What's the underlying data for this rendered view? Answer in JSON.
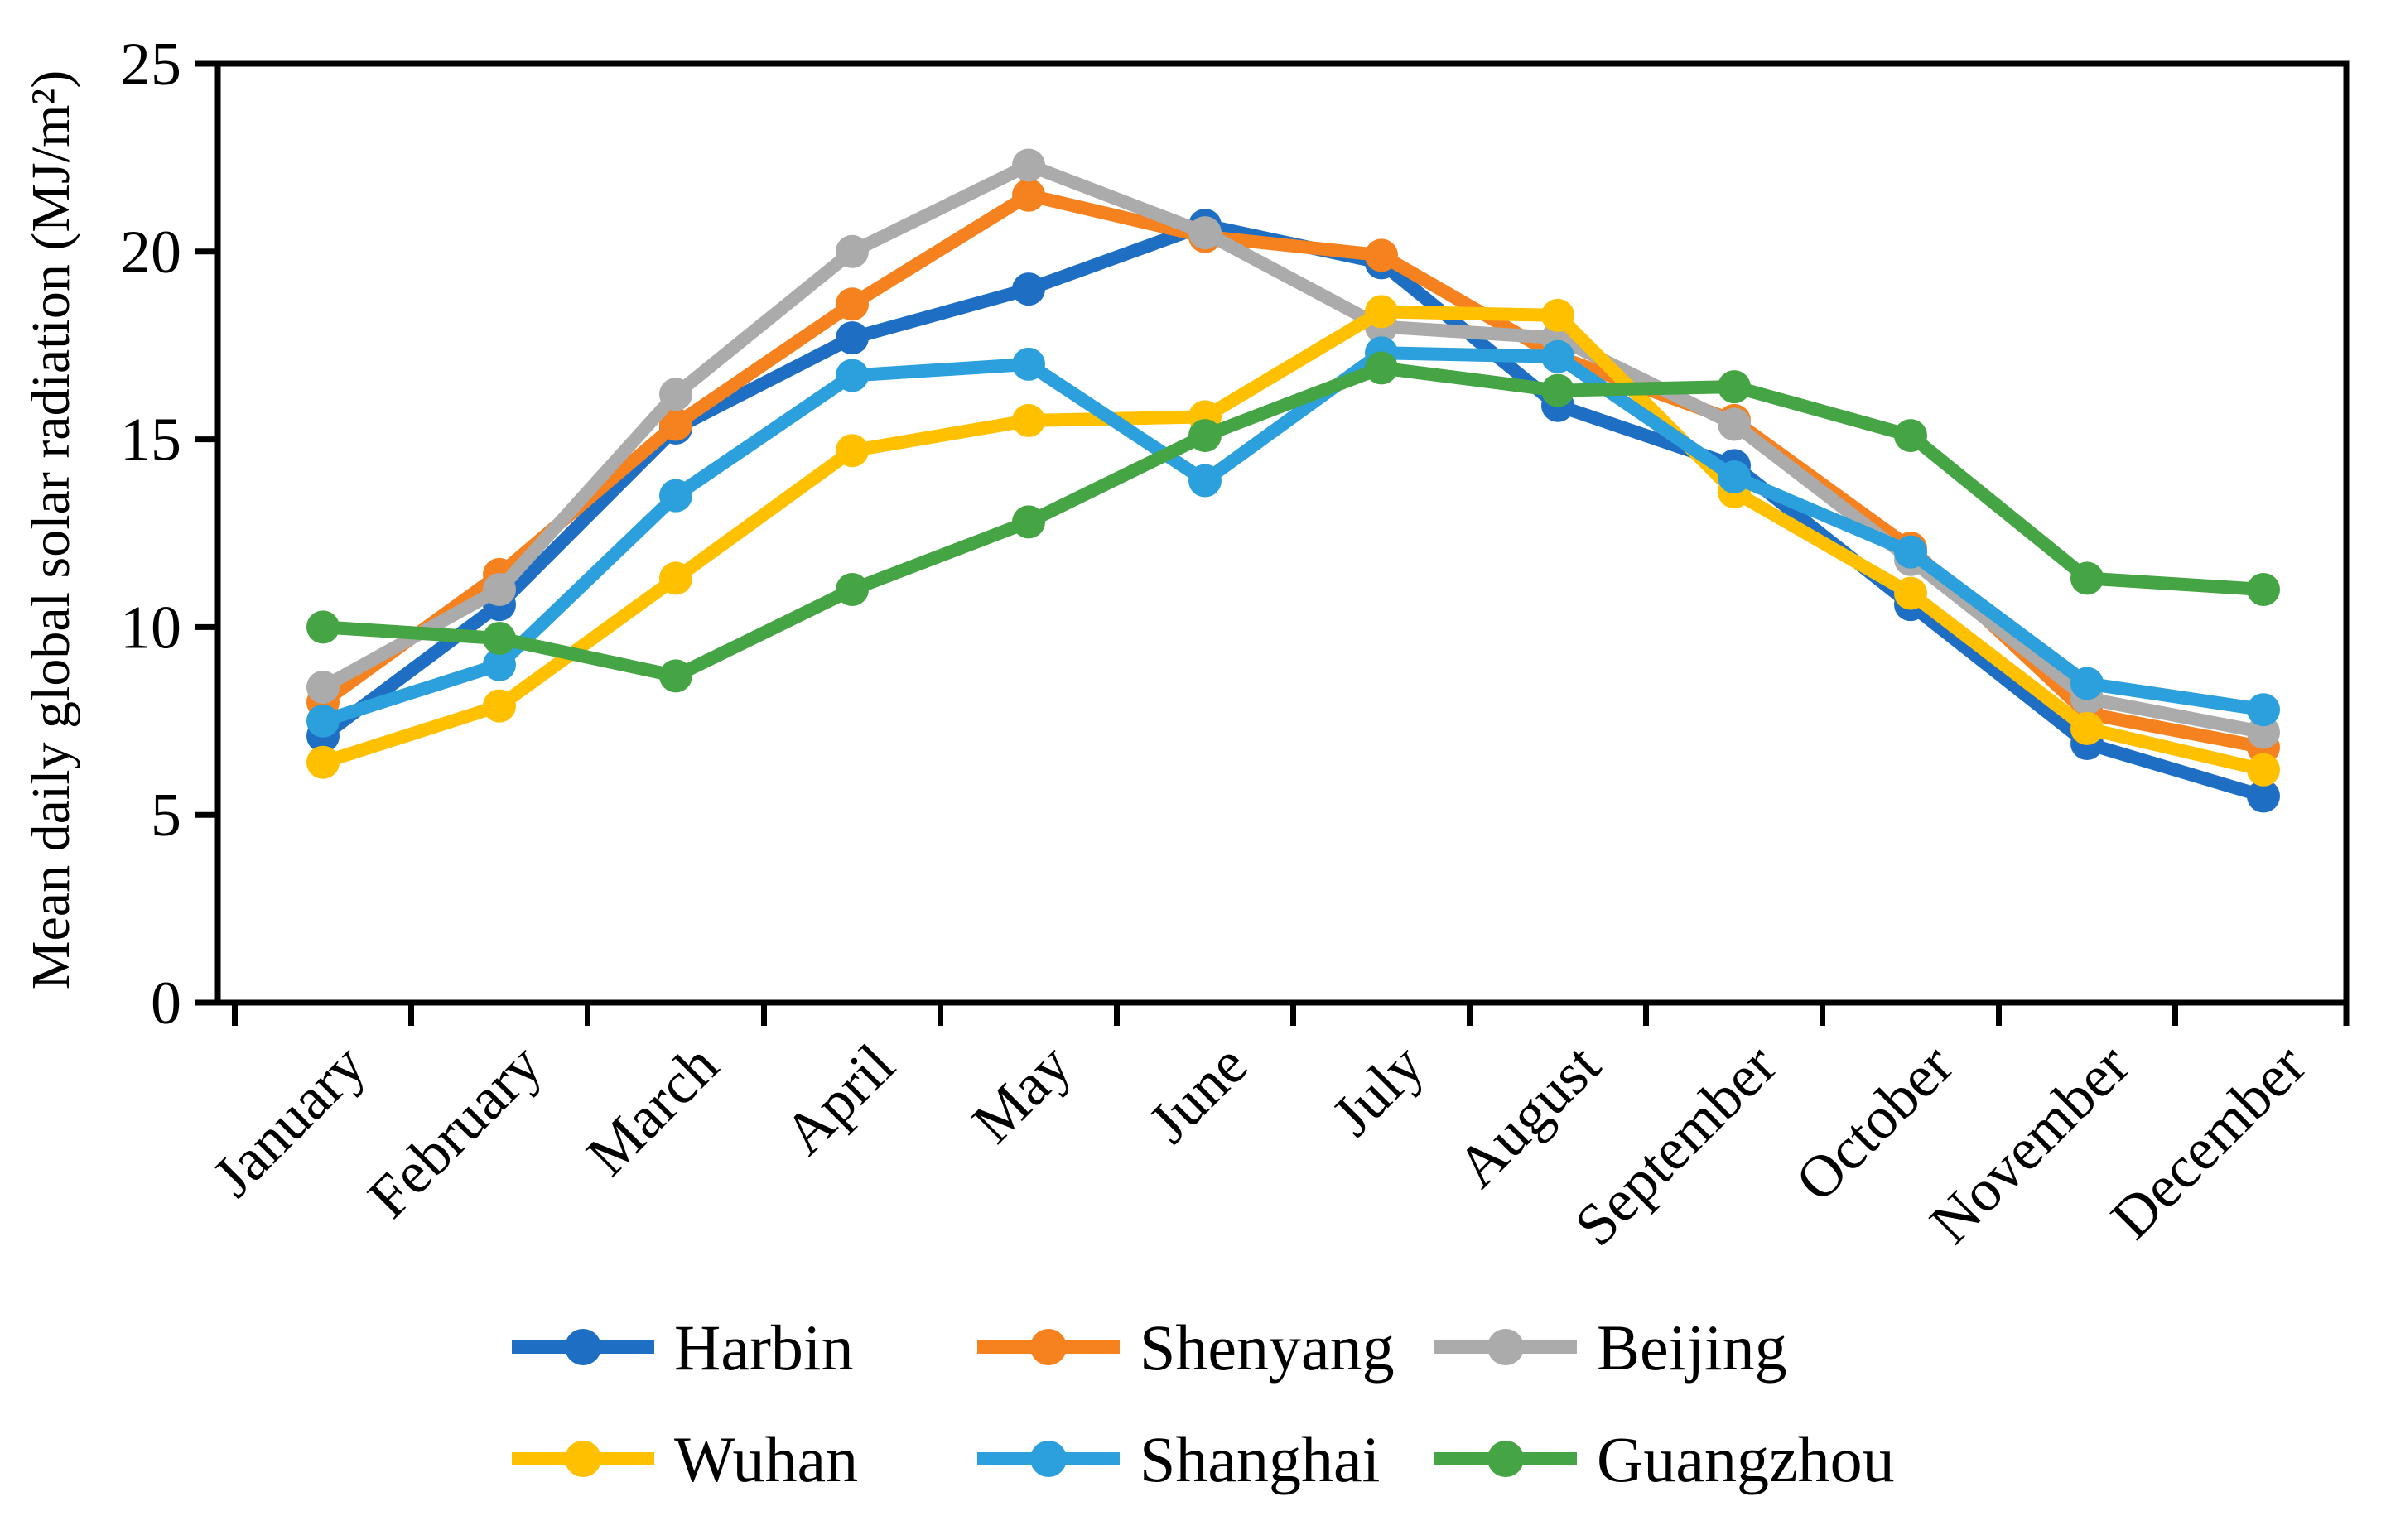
{
  "chart_data": {
    "type": "line",
    "title": "",
    "xlabel": "",
    "ylabel": "Mean daily global solar radiation (MJ/m²)",
    "ylim": [
      0,
      25
    ],
    "yticks": [
      0,
      5,
      10,
      15,
      20,
      25
    ],
    "grid": false,
    "plot_border": true,
    "marker": "circle",
    "legend": {
      "position": "bottom",
      "columns": 3,
      "rows": 2
    },
    "categories": [
      "January",
      "February",
      "March",
      "April",
      "May",
      "June",
      "July",
      "August",
      "September",
      "October",
      "November",
      "December"
    ],
    "series": [
      {
        "name": "Harbin",
        "color": "#1E6FC4",
        "values": [
          7.1,
          10.6,
          15.3,
          17.7,
          19.0,
          20.7,
          19.7,
          15.9,
          14.3,
          10.6,
          6.9,
          5.5
        ]
      },
      {
        "name": "Shenyang",
        "color": "#F5811F",
        "values": [
          8.0,
          11.4,
          15.4,
          18.6,
          21.5,
          20.4,
          19.9,
          17.2,
          15.5,
          12.1,
          7.7,
          6.8
        ]
      },
      {
        "name": "Beijing",
        "color": "#ABABAB",
        "values": [
          8.4,
          11.0,
          16.2,
          20.0,
          22.3,
          20.5,
          18.0,
          17.7,
          15.4,
          11.8,
          8.1,
          7.2
        ]
      },
      {
        "name": "Wuhan",
        "color": "#FFC000",
        "values": [
          6.4,
          7.9,
          11.3,
          14.7,
          15.5,
          15.6,
          18.4,
          18.3,
          13.6,
          10.9,
          7.3,
          6.2
        ]
      },
      {
        "name": "Shanghai",
        "color": "#2BA0DC",
        "values": [
          7.5,
          9.0,
          13.5,
          16.7,
          17.0,
          13.9,
          17.3,
          17.2,
          14.0,
          12.0,
          8.5,
          7.8
        ]
      },
      {
        "name": "Guangzhou",
        "color": "#45A545",
        "values": [
          10.0,
          9.7,
          8.7,
          11.0,
          12.8,
          15.1,
          16.9,
          16.3,
          16.4,
          15.1,
          11.3,
          11.0
        ]
      }
    ],
    "axis_color": "#000000"
  }
}
